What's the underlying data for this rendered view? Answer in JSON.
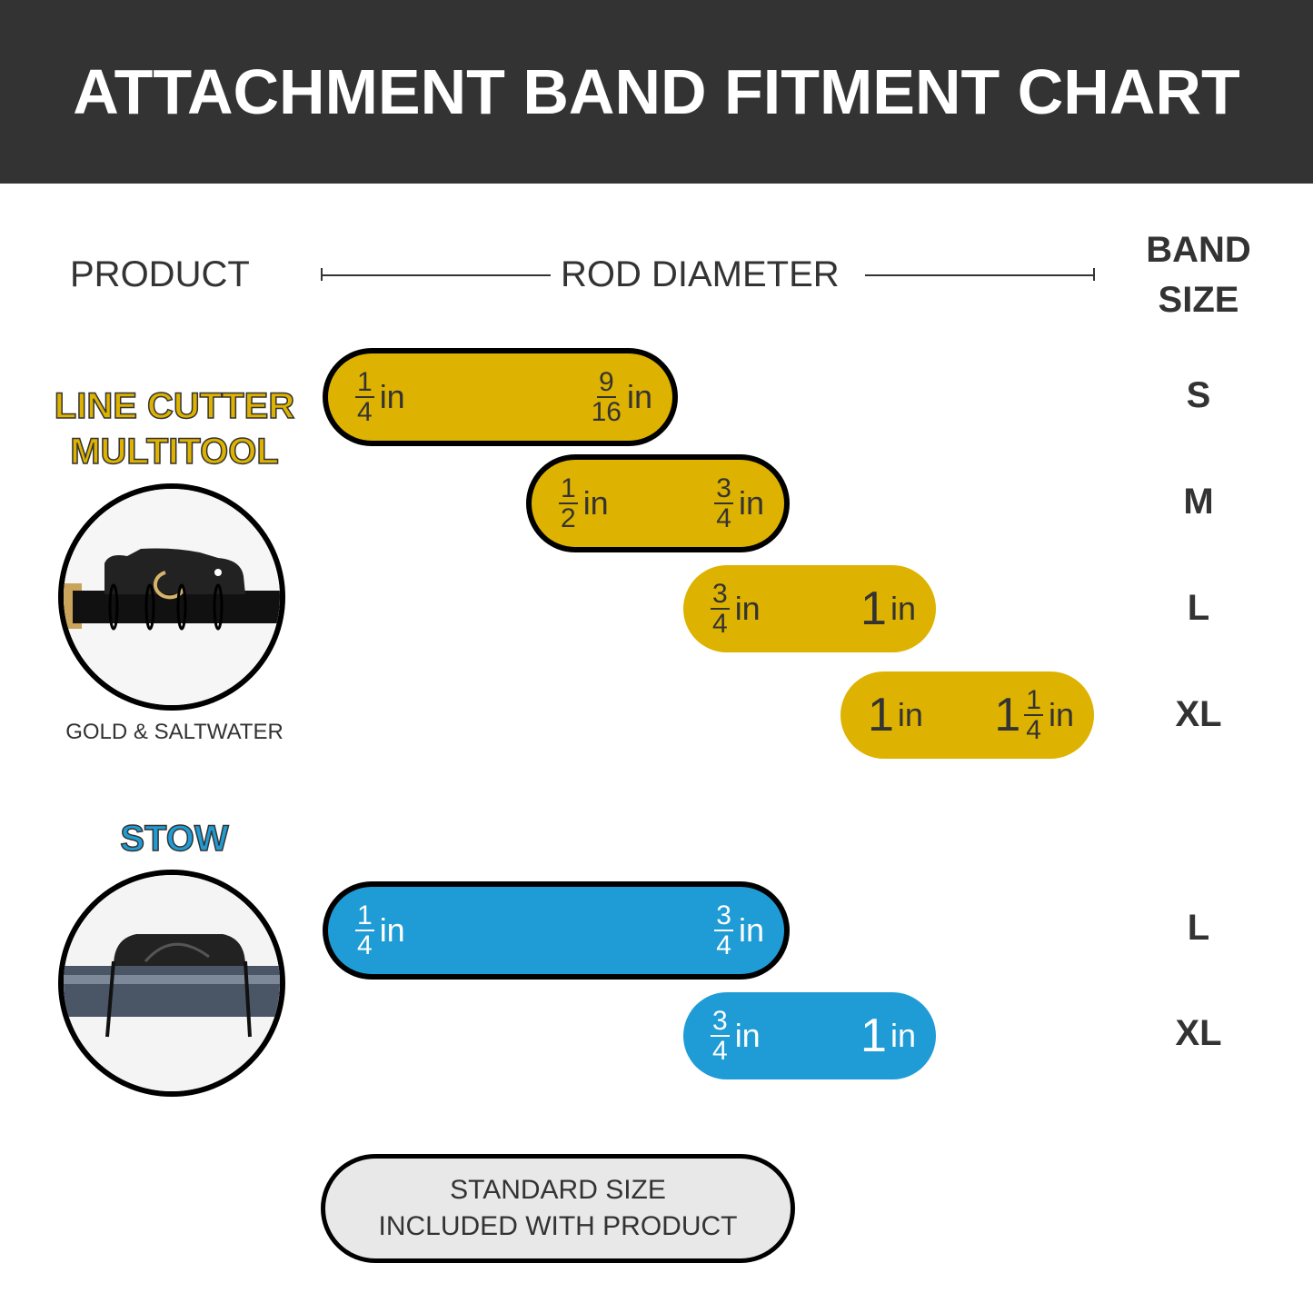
{
  "title": "ATTACHMENT BAND FITMENT CHART",
  "columns": {
    "product": "PRODUCT",
    "rod_diameter": "ROD DIAMETER",
    "band_size_line1": "BAND",
    "band_size_line2": "SIZE"
  },
  "unit": "in",
  "colors": {
    "line_cutter": "#DDB200",
    "stow": "#1F9CD6",
    "header": "#333333",
    "legend_fill": "#E8E8E8"
  },
  "products": [
    {
      "name_line1": "LINE CUTTER",
      "name_line2": "MULTITOOL",
      "caption": "GOLD & SALTWATER",
      "image": "line-cutter-on-rod",
      "bands": [
        {
          "size": "S",
          "min": {
            "whole": "",
            "num": "1",
            "den": "4"
          },
          "max": {
            "whole": "",
            "num": "9",
            "den": "16"
          },
          "standard": true
        },
        {
          "size": "M",
          "min": {
            "whole": "",
            "num": "1",
            "den": "2"
          },
          "max": {
            "whole": "",
            "num": "3",
            "den": "4"
          },
          "standard": true
        },
        {
          "size": "L",
          "min": {
            "whole": "",
            "num": "3",
            "den": "4"
          },
          "max": {
            "whole": "1",
            "num": "",
            "den": ""
          },
          "standard": false
        },
        {
          "size": "XL",
          "min": {
            "whole": "1",
            "num": "",
            "den": ""
          },
          "max": {
            "whole": "1",
            "num": "1",
            "den": "4"
          },
          "standard": false
        }
      ]
    },
    {
      "name_line1": "STOW",
      "caption": "",
      "image": "stow-on-rod",
      "bands": [
        {
          "size": "L",
          "min": {
            "whole": "",
            "num": "1",
            "den": "4"
          },
          "max": {
            "whole": "",
            "num": "3",
            "den": "4"
          },
          "standard": true
        },
        {
          "size": "XL",
          "min": {
            "whole": "",
            "num": "3",
            "den": "4"
          },
          "max": {
            "whole": "1",
            "num": "",
            "den": ""
          },
          "standard": false
        }
      ]
    }
  ],
  "legend": {
    "line1": "STANDARD SIZE",
    "line2": "INCLUDED WITH PRODUCT"
  }
}
